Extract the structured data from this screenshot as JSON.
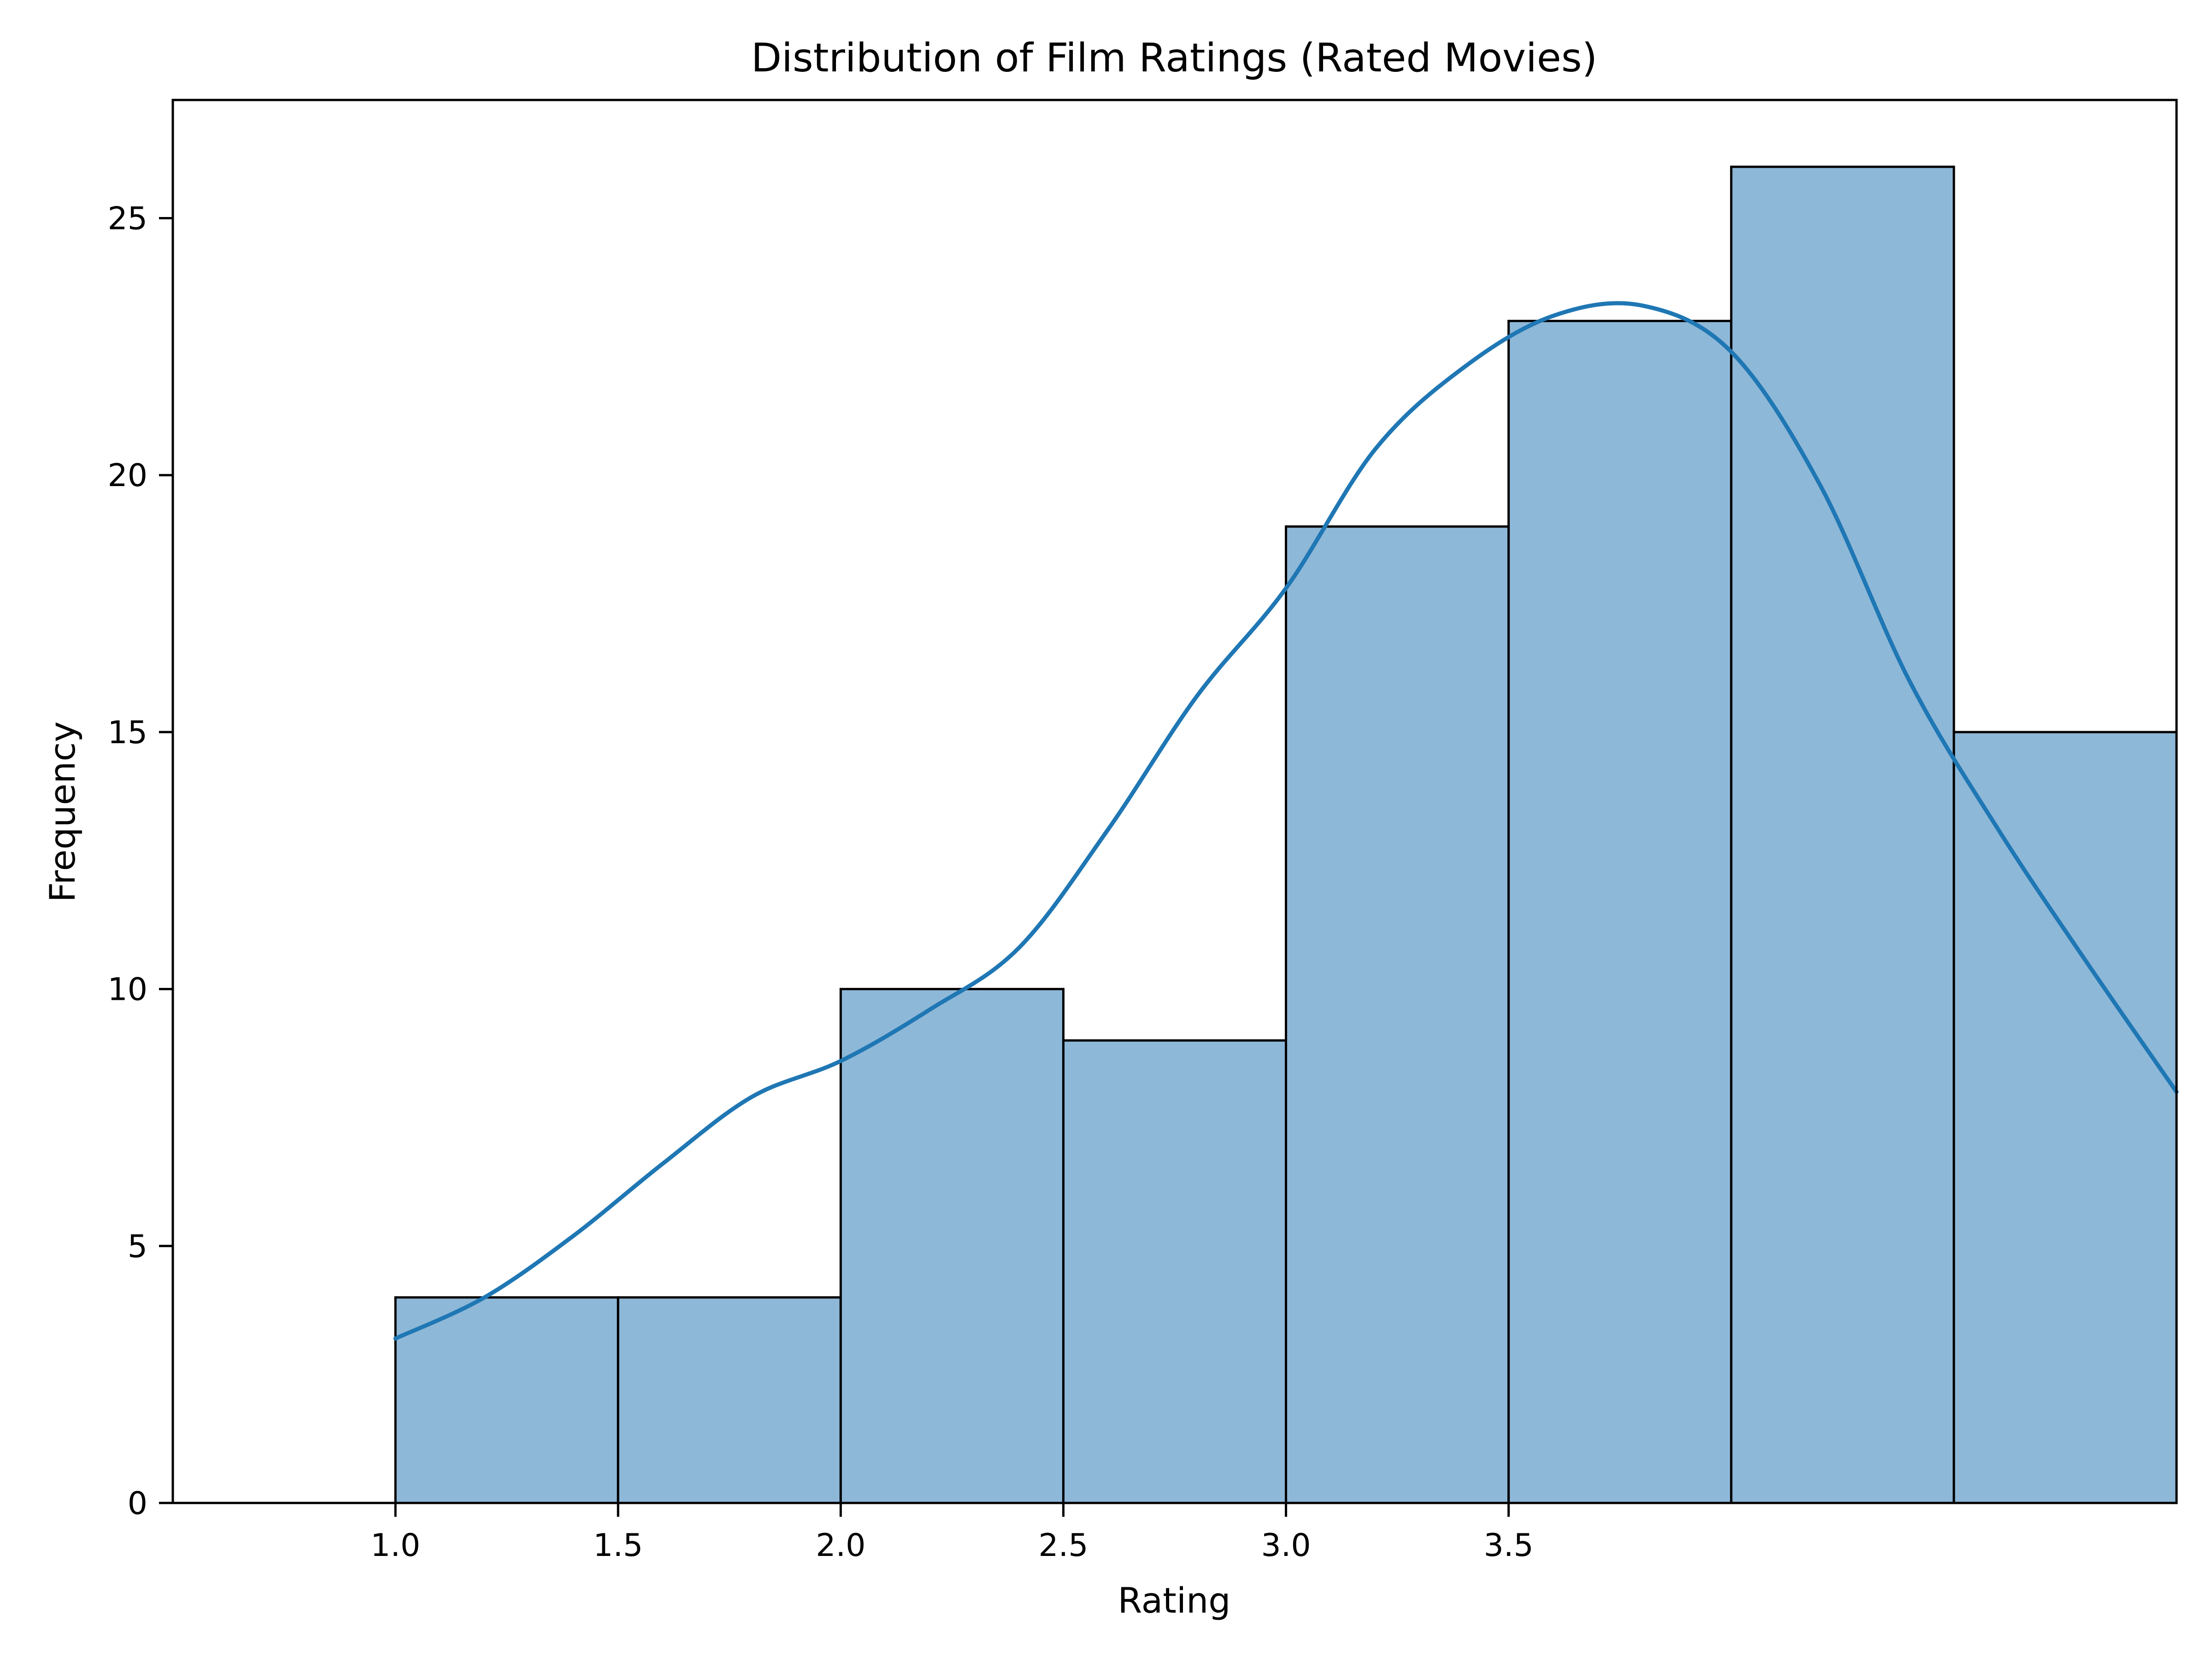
{
  "chart_data": {
    "type": "bar",
    "title": "Distribution of Film Ratings (Rated Movies)",
    "xlabel": "Rating",
    "ylabel": "Frequency",
    "xlim": [
      0.5,
      5.0
    ],
    "ylim": [
      0,
      27.3
    ],
    "grid": false,
    "legend": "none",
    "x_ticks": [
      "1.0",
      "1.5",
      "2.0",
      "2.5",
      "3.0",
      "3.5"
    ],
    "y_ticks": [
      "0",
      "5",
      "10",
      "15",
      "20",
      "25"
    ],
    "bins": [
      {
        "start": 1.0,
        "end": 1.5,
        "value": 4
      },
      {
        "start": 1.5,
        "end": 2.0,
        "value": 4
      },
      {
        "start": 2.0,
        "end": 2.5,
        "value": 10
      },
      {
        "start": 2.5,
        "end": 3.0,
        "value": 9
      },
      {
        "start": 3.0,
        "end": 3.5,
        "value": 19
      },
      {
        "start": 3.5,
        "end": 4.0,
        "value": 23
      },
      {
        "start": 4.0,
        "end": 4.5,
        "value": 26
      },
      {
        "start": 4.5,
        "end": 5.0,
        "value": 15
      }
    ],
    "kde": {
      "x": [
        1.0,
        1.2,
        1.4,
        1.6,
        1.8,
        2.0,
        2.2,
        2.4,
        2.6,
        2.8,
        3.0,
        3.2,
        3.4,
        3.6,
        3.8,
        4.0,
        4.2,
        4.4,
        4.6,
        4.8,
        5.0
      ],
      "y": [
        3.2,
        4.0,
        5.2,
        6.6,
        7.9,
        8.6,
        9.6,
        10.8,
        13.1,
        15.7,
        17.8,
        20.5,
        22.1,
        23.1,
        23.3,
        22.4,
        19.8,
        16.0,
        13.1,
        10.5,
        8.0
      ]
    },
    "colors": {
      "bar_fill": "#8eb8d8",
      "bar_edge": "#000000",
      "kde_line": "#1f77b4"
    }
  }
}
